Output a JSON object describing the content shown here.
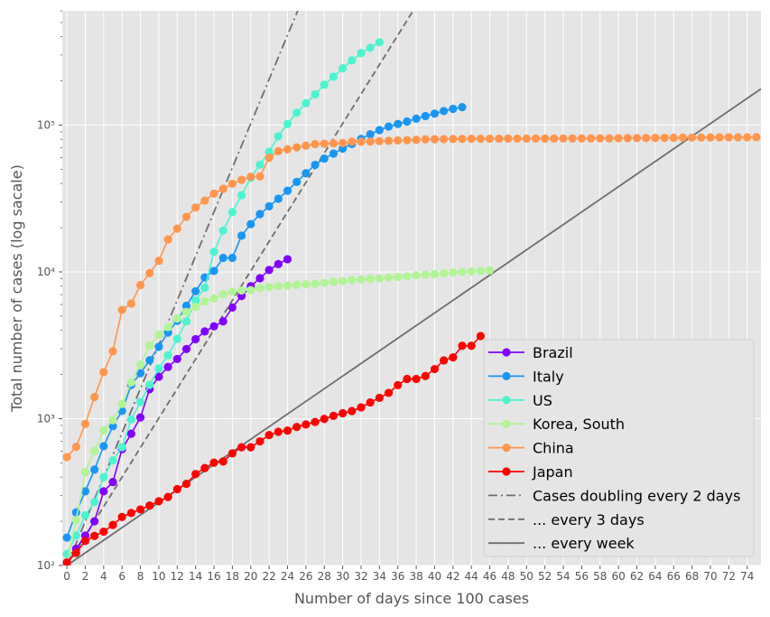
{
  "chart_data": {
    "type": "line",
    "xlabel": "Number of days since 100 cases",
    "ylabel": "Total number of cases  (log sacale)",
    "y_scale": "log",
    "xlim": [
      -0.5,
      75.5
    ],
    "ylim": [
      100,
      600000
    ],
    "x_ticks": [
      0,
      2,
      4,
      6,
      8,
      10,
      12,
      14,
      16,
      18,
      20,
      22,
      24,
      26,
      28,
      30,
      32,
      34,
      36,
      38,
      40,
      42,
      44,
      46,
      48,
      50,
      52,
      54,
      56,
      58,
      60,
      62,
      64,
      66,
      68,
      70,
      72,
      74
    ],
    "y_ticks": [
      {
        "value": 100,
        "label": "10²"
      },
      {
        "value": 1000,
        "label": "10³"
      },
      {
        "value": 10000,
        "label": "10⁴"
      },
      {
        "value": 100000,
        "label": "10⁵"
      }
    ],
    "grid": true,
    "legend_position": "lower-right",
    "series": [
      {
        "name": "Brazil",
        "color": "#8000ff",
        "start_x": 0,
        "values": [
          100,
          130,
          160,
          200,
          320,
          370,
          620,
          790,
          1020,
          1590,
          1930,
          2250,
          2550,
          2980,
          3480,
          3930,
          4260,
          4600,
          5720,
          6850,
          7980,
          9060,
          10300,
          11300,
          12200
        ]
      },
      {
        "name": "Italy",
        "color": "#1996f3",
        "start_x": 0,
        "values": [
          155,
          230,
          320,
          450,
          650,
          890,
          1130,
          1700,
          2040,
          2500,
          3090,
          3860,
          4640,
          5880,
          7380,
          9170,
          10150,
          12460,
          12460,
          17660,
          21160,
          24750,
          27980,
          31510,
          35710,
          41040,
          47020,
          53580,
          59140,
          63930,
          69180,
          74390,
          80590,
          86500,
          92470,
          97690,
          101740,
          105790,
          110570,
          115240,
          119830,
          124630,
          128950,
          132550
        ]
      },
      {
        "name": "US",
        "color": "#4df3ce",
        "start_x": 0,
        "values": [
          120,
          160,
          220,
          270,
          400,
          520,
          640,
          990,
          1300,
          1700,
          2200,
          2700,
          3500,
          4600,
          6400,
          7800,
          13700,
          19100,
          25500,
          33300,
          43800,
          53700,
          65800,
          83800,
          101700,
          121500,
          140900,
          161800,
          188200,
          213400,
          243600,
          275600,
          309000,
          337000,
          366000
        ]
      },
      {
        "name": "Korea, South",
        "color": "#b2f396",
        "start_x": 0,
        "values": [
          104,
          204,
          433,
          602,
          833,
          977,
          1261,
          1766,
          2337,
          3150,
          3736,
          4212,
          4812,
          5328,
          5766,
          6284,
          6593,
          7041,
          7313,
          7478,
          7513,
          7755,
          7869,
          7979,
          8086,
          8162,
          8236,
          8320,
          8413,
          8565,
          8652,
          8799,
          8897,
          8961,
          9037,
          9137,
          9241,
          9332,
          9478,
          9583,
          9661,
          9786,
          9887,
          9976,
          10062,
          10156,
          10237
        ]
      },
      {
        "name": "China",
        "color": "#ff964f",
        "start_x": 0,
        "values": [
          548,
          643,
          920,
          1406,
          2075,
          2877,
          5509,
          6087,
          8141,
          9802,
          11891,
          16630,
          19716,
          23707,
          27440,
          30587,
          34110,
          36814,
          39829,
          42354,
          44386,
          44759,
          59895,
          66358,
          68413,
          70513,
          72434,
          74211,
          74619,
          75077,
          75550,
          77001,
          77022,
          77241,
          77754,
          78166,
          78600,
          78928,
          79356,
          79932,
          80136,
          80261,
          80386,
          80537,
          80690,
          80770,
          80823,
          80860,
          80887,
          80921,
          80932,
          80945,
          80977,
          81003,
          81033,
          81058,
          81102,
          81156,
          81250,
          81305,
          81435,
          81498,
          81591,
          81661,
          81782,
          81897,
          81999,
          82122,
          82198,
          82279,
          82361,
          82432,
          82511,
          82543,
          82602,
          82665
        ]
      },
      {
        "name": "Japan",
        "color": "#ff0000",
        "start_x": 0,
        "values": [
          105,
          122,
          147,
          159,
          170,
          189,
          214,
          228,
          241,
          256,
          274,
          293,
          331,
          360,
          420,
          461,
          502,
          511,
          581,
          639,
          639,
          701,
          773,
          814,
          830,
          878,
          913,
          950,
          996,
          1046,
          1089,
          1128,
          1193,
          1291,
          1387,
          1499,
          1693,
          1866,
          1866,
          1953,
          2178,
          2495,
          2617,
          3139,
          3139,
          3654
        ]
      }
    ],
    "reference_lines": [
      {
        "name": "Cases doubling every 2 days",
        "doubling_days": 2,
        "style": "dashdot",
        "color": "#6e6e6e"
      },
      {
        "name": "... every 3 days",
        "doubling_days": 3,
        "style": "dashed",
        "color": "#6e6e6e"
      },
      {
        "name": "... every week",
        "doubling_days": 7,
        "style": "solid",
        "color": "#6e6e6e"
      }
    ]
  }
}
